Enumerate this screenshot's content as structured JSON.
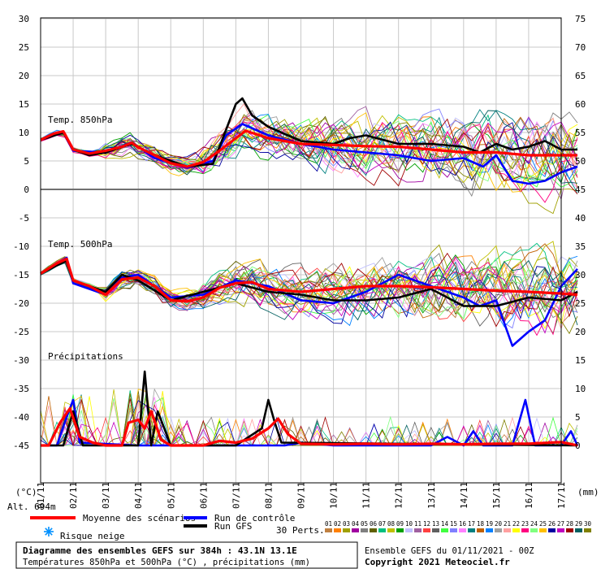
{
  "chart_data": {
    "type": "line",
    "x_dates": [
      "01/11",
      "02/11",
      "03/11",
      "04/11",
      "05/11",
      "06/11",
      "07/11",
      "08/11",
      "09/11",
      "10/11",
      "11/11",
      "12/11",
      "13/11",
      "14/11",
      "15/11",
      "16/11",
      "17/11"
    ],
    "left_axis": {
      "ticks": [
        30,
        25,
        20,
        15,
        10,
        5,
        0,
        -5,
        -10,
        -15,
        -20,
        -25,
        -30,
        -35,
        -40,
        -45
      ],
      "unit": "(°C)"
    },
    "right_axis": {
      "ticks": [
        75,
        70,
        65,
        60,
        55,
        50,
        45,
        40,
        35,
        30,
        25,
        20,
        15,
        10,
        5,
        0
      ],
      "unit": "(mm)"
    },
    "altitude": "Alt. 694m",
    "panels": {
      "t850": {
        "label": "Temp. 850hPa"
      },
      "t500": {
        "label": "Temp. 500hPa"
      },
      "precip": {
        "label": "Précipitations"
      }
    },
    "series": [
      {
        "name": "Moyenne des scénarios",
        "color": "#ff0000",
        "panel": "t850",
        "points": [
          [
            0,
            8.7
          ],
          [
            0.4,
            9.8
          ],
          [
            0.7,
            10.2
          ],
          [
            1,
            7
          ],
          [
            1.5,
            6.3
          ],
          [
            2,
            6.8
          ],
          [
            2.5,
            7.5
          ],
          [
            2.8,
            8.2
          ],
          [
            3,
            7.4
          ],
          [
            3.5,
            6
          ],
          [
            4,
            4.6
          ],
          [
            4.5,
            4
          ],
          [
            5,
            4.8
          ],
          [
            5.5,
            6.8
          ],
          [
            6,
            9
          ],
          [
            6.3,
            10.3
          ],
          [
            7,
            9
          ],
          [
            8,
            8
          ],
          [
            9,
            7.8
          ],
          [
            10,
            7.6
          ],
          [
            11,
            7.5
          ],
          [
            12,
            7
          ],
          [
            13,
            6.5
          ],
          [
            14,
            6.5
          ],
          [
            15,
            6
          ],
          [
            16,
            6
          ],
          [
            16.5,
            6
          ]
        ]
      },
      {
        "name": "Moyenne des scénarios",
        "color": "#ff0000",
        "panel": "t500",
        "points": [
          [
            0,
            -14.8
          ],
          [
            0.5,
            -13
          ],
          [
            0.8,
            -12.2
          ],
          [
            1,
            -16
          ],
          [
            1.5,
            -17
          ],
          [
            2,
            -18.5
          ],
          [
            2.5,
            -15.8
          ],
          [
            3,
            -15.5
          ],
          [
            3.5,
            -17
          ],
          [
            4,
            -19.5
          ],
          [
            4.5,
            -19.7
          ],
          [
            5,
            -19
          ],
          [
            5.5,
            -17.3
          ],
          [
            6,
            -16.5
          ],
          [
            6.5,
            -16.3
          ],
          [
            7,
            -17.5
          ],
          [
            8,
            -18
          ],
          [
            9,
            -17.5
          ],
          [
            10,
            -17
          ],
          [
            11,
            -17
          ],
          [
            12,
            -17.2
          ],
          [
            13,
            -17.5
          ],
          [
            14,
            -17.8
          ],
          [
            15,
            -18
          ],
          [
            16,
            -18.3
          ],
          [
            16.5,
            -18.5
          ]
        ]
      },
      {
        "name": "Moyenne des scénarios",
        "color": "#ff0000",
        "panel": "precip",
        "points": [
          [
            0,
            0
          ],
          [
            0.25,
            0
          ],
          [
            0.6,
            4
          ],
          [
            0.9,
            6.5
          ],
          [
            1.2,
            1.5
          ],
          [
            1.6,
            0.5
          ],
          [
            2,
            0
          ],
          [
            2.5,
            0
          ],
          [
            2.7,
            4
          ],
          [
            3,
            4.5
          ],
          [
            3.2,
            3
          ],
          [
            3.4,
            6
          ],
          [
            3.7,
            1
          ],
          [
            4,
            0
          ],
          [
            5,
            0
          ],
          [
            5.5,
            0.8
          ],
          [
            6,
            0.5
          ],
          [
            6.5,
            1.2
          ],
          [
            7,
            3
          ],
          [
            7.3,
            4.7
          ],
          [
            7.6,
            2
          ],
          [
            8,
            0.3
          ],
          [
            9,
            0.2
          ],
          [
            10,
            0.3
          ],
          [
            11,
            0.2
          ],
          [
            12,
            0.3
          ],
          [
            13,
            0.2
          ],
          [
            14,
            0.3
          ],
          [
            15,
            0.3
          ],
          [
            16,
            0.6
          ],
          [
            16.5,
            0
          ]
        ]
      },
      {
        "name": "Run de contrôle",
        "color": "#0000ff",
        "panel": "t850",
        "points": [
          [
            0,
            8.7
          ],
          [
            0.7,
            10
          ],
          [
            1,
            6.8
          ],
          [
            2,
            6.5
          ],
          [
            2.8,
            8.3
          ],
          [
            3.5,
            5.5
          ],
          [
            4.5,
            3.8
          ],
          [
            5.3,
            5
          ],
          [
            5.7,
            9.5
          ],
          [
            6.2,
            11.5
          ],
          [
            7,
            9.5
          ],
          [
            8,
            8
          ],
          [
            9,
            7
          ],
          [
            10,
            6.5
          ],
          [
            11,
            6
          ],
          [
            12,
            5
          ],
          [
            13,
            5.5
          ],
          [
            13.6,
            4
          ],
          [
            14,
            6
          ],
          [
            14.5,
            1.5
          ],
          [
            15,
            1
          ],
          [
            15.5,
            1.5
          ],
          [
            16,
            3
          ],
          [
            16.5,
            4
          ]
        ]
      },
      {
        "name": "Run de contrôle",
        "color": "#0000ff",
        "panel": "t500",
        "points": [
          [
            0,
            -14.8
          ],
          [
            0.8,
            -12
          ],
          [
            1,
            -16.5
          ],
          [
            2,
            -18.5
          ],
          [
            2.5,
            -15.5
          ],
          [
            3,
            -15
          ],
          [
            4,
            -19
          ],
          [
            5,
            -18.5
          ],
          [
            6,
            -16
          ],
          [
            7,
            -17
          ],
          [
            8,
            -19.5
          ],
          [
            9,
            -20
          ],
          [
            10,
            -18
          ],
          [
            11,
            -15
          ],
          [
            12,
            -17
          ],
          [
            13,
            -19
          ],
          [
            13.5,
            -20.5
          ],
          [
            14,
            -19.5
          ],
          [
            14.5,
            -27.5
          ],
          [
            15,
            -25
          ],
          [
            15.5,
            -23
          ],
          [
            16,
            -17
          ],
          [
            16.5,
            -14
          ]
        ]
      },
      {
        "name": "Run de contrôle",
        "color": "#0000ff",
        "panel": "precip",
        "points": [
          [
            0,
            0
          ],
          [
            0.5,
            0
          ],
          [
            0.8,
            5
          ],
          [
            1,
            8
          ],
          [
            1.2,
            0.5
          ],
          [
            3,
            0
          ],
          [
            7.5,
            0
          ],
          [
            8,
            0.5
          ],
          [
            9,
            0
          ],
          [
            12,
            0
          ],
          [
            12.5,
            1.5
          ],
          [
            13,
            0
          ],
          [
            13.3,
            2.5
          ],
          [
            13.6,
            0
          ],
          [
            14,
            0
          ],
          [
            14.5,
            0
          ],
          [
            14.9,
            8
          ],
          [
            15.2,
            0
          ],
          [
            16,
            0
          ],
          [
            16.3,
            2.5
          ],
          [
            16.5,
            0
          ]
        ]
      },
      {
        "name": "Run GFS",
        "color": "#000000",
        "panel": "t850",
        "points": [
          [
            0,
            8.7
          ],
          [
            0.7,
            10
          ],
          [
            1,
            7
          ],
          [
            1.5,
            6
          ],
          [
            2,
            6.5
          ],
          [
            2.8,
            8
          ],
          [
            3.5,
            6
          ],
          [
            4.5,
            4
          ],
          [
            5.3,
            4.5
          ],
          [
            5.6,
            9
          ],
          [
            6,
            15
          ],
          [
            6.2,
            16
          ],
          [
            6.5,
            13
          ],
          [
            7,
            11
          ],
          [
            8,
            8.5
          ],
          [
            9,
            8
          ],
          [
            9.5,
            9
          ],
          [
            10,
            9.5
          ],
          [
            11,
            8
          ],
          [
            12,
            8
          ],
          [
            13,
            7.5
          ],
          [
            13.5,
            6.5
          ],
          [
            14,
            8
          ],
          [
            14.5,
            7
          ],
          [
            15,
            7.5
          ],
          [
            15.5,
            8.5
          ],
          [
            16,
            7
          ],
          [
            16.5,
            7
          ]
        ]
      },
      {
        "name": "Run GFS",
        "color": "#000000",
        "panel": "t500",
        "points": [
          [
            0,
            -14.8
          ],
          [
            0.8,
            -12.5
          ],
          [
            1,
            -16
          ],
          [
            2,
            -18
          ],
          [
            2.5,
            -15
          ],
          [
            3,
            -16
          ],
          [
            4,
            -19.5
          ],
          [
            5,
            -18
          ],
          [
            6,
            -16.5
          ],
          [
            7,
            -18
          ],
          [
            8,
            -18.5
          ],
          [
            9,
            -19.5
          ],
          [
            10,
            -19.5
          ],
          [
            11,
            -19
          ],
          [
            12,
            -17.5
          ],
          [
            13,
            -20.5
          ],
          [
            14,
            -20.5
          ],
          [
            15,
            -19
          ],
          [
            16,
            -19.5
          ],
          [
            16.5,
            -18
          ]
        ]
      },
      {
        "name": "Run GFS",
        "color": "#000000",
        "panel": "precip",
        "points": [
          [
            0,
            0
          ],
          [
            0.7,
            0
          ],
          [
            1,
            6
          ],
          [
            1.3,
            0
          ],
          [
            2,
            0
          ],
          [
            3,
            0
          ],
          [
            3.2,
            13
          ],
          [
            3.4,
            0
          ],
          [
            3.6,
            6
          ],
          [
            4,
            0
          ],
          [
            6,
            0
          ],
          [
            6.8,
            3
          ],
          [
            7,
            8
          ],
          [
            7.2,
            4
          ],
          [
            7.4,
            0.5
          ],
          [
            16.5,
            0
          ]
        ]
      }
    ]
  },
  "legend": {
    "mean_label": "Moyenne des scénarios",
    "control_label": "Run de contrôle",
    "gfs_label": "Run GFS",
    "snow_label": "Risque neige",
    "perts_label": "30 Perts.",
    "perts_numbers": [
      "01",
      "02",
      "03",
      "04",
      "05",
      "06",
      "07",
      "08",
      "09",
      "10",
      "11",
      "12",
      "13",
      "14",
      "15",
      "16",
      "17",
      "18",
      "19",
      "20",
      "21",
      "22",
      "23",
      "24",
      "25",
      "26",
      "27",
      "28",
      "29",
      "30"
    ],
    "perts_colors": [
      "#c08040",
      "#ff8000",
      "#a0a000",
      "#a000a0",
      "#808080",
      "#606000",
      "#00c080",
      "#c0c000",
      "#00a000",
      "#c0c0ff",
      "#a060a0",
      "#ff4040",
      "#606060",
      "#40ff40",
      "#8080ff",
      "#ff80ff",
      "#008080",
      "#c06000",
      "#0080ff",
      "#a0a0a0",
      "#ffa0a0",
      "#ffff00",
      "#ff0080",
      "#80ff80",
      "#ffc000",
      "#0000a0",
      "#c000c0",
      "#a00000",
      "#006060",
      "#808000"
    ]
  },
  "footer": {
    "title": "Diagramme des ensembles GEFS sur 384h : 43.1N 13.1E",
    "subtitle": "Températures 850hPa et 500hPa (°C) , précipitations (mm)",
    "run": "Ensemble GEFS du 01/11/2021 - 00Z",
    "copyright": "Copyright 2021 Meteociel.fr"
  }
}
